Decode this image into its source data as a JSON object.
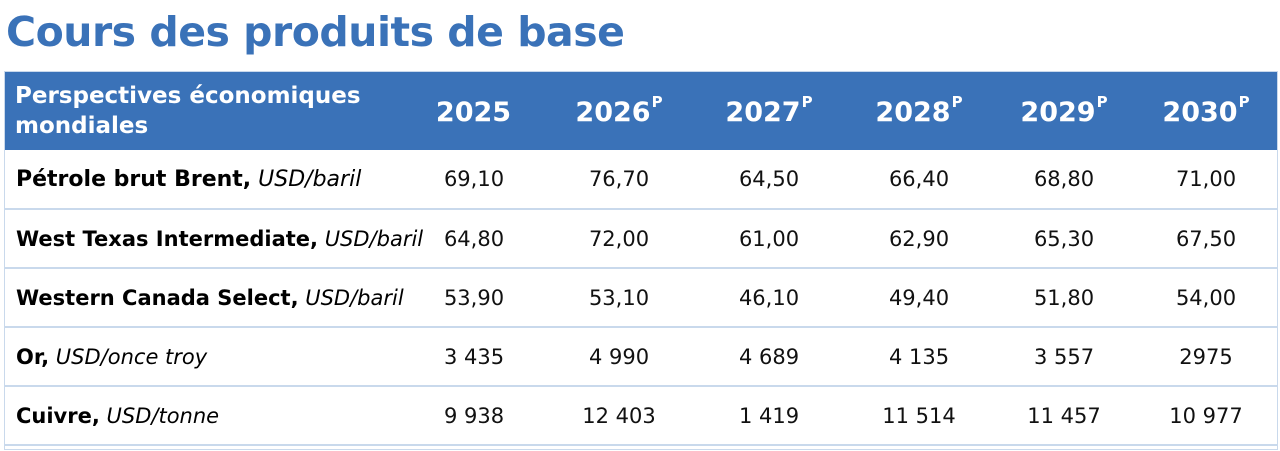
{
  "title": "Cours des produits de base",
  "table": {
    "header_label": "Perspectives économiques mondiales",
    "years": [
      {
        "year": "2025",
        "suffix": ""
      },
      {
        "year": "2026",
        "suffix": "P"
      },
      {
        "year": "2027",
        "suffix": "P"
      },
      {
        "year": "2028",
        "suffix": "P"
      },
      {
        "year": "2029",
        "suffix": "P"
      },
      {
        "year": "2030",
        "suffix": "P"
      }
    ],
    "rows": [
      {
        "name": "Pétrole brut Brent,",
        "unit": "USD/baril",
        "values": [
          "69,10",
          "76,70",
          "64,50",
          "66,40",
          "68,80",
          "71,00"
        ]
      },
      {
        "name": "West Texas Intermediate,",
        "unit": "USD/baril",
        "values": [
          "64,80",
          "72,00",
          "61,00",
          "62,90",
          "65,30",
          "67,50"
        ]
      },
      {
        "name": "Western Canada Select,",
        "unit": "USD/baril",
        "values": [
          "53,90",
          "53,10",
          "46,10",
          "49,40",
          "51,80",
          "54,00"
        ]
      },
      {
        "name": "Or,",
        "unit": "USD/once troy",
        "values": [
          "3 435",
          "4 990",
          "4 689",
          "4 135",
          "3 557",
          "2975"
        ]
      },
      {
        "name": "Cuivre,",
        "unit": "USD/tonne",
        "values": [
          "9 938",
          "12 403",
          "1 419",
          "11 514",
          "11 457",
          "10 977"
        ]
      }
    ]
  },
  "colors": {
    "accent": "#3a72b8",
    "header_text": "#ffffff",
    "row_divider": "#c9d9ec"
  }
}
